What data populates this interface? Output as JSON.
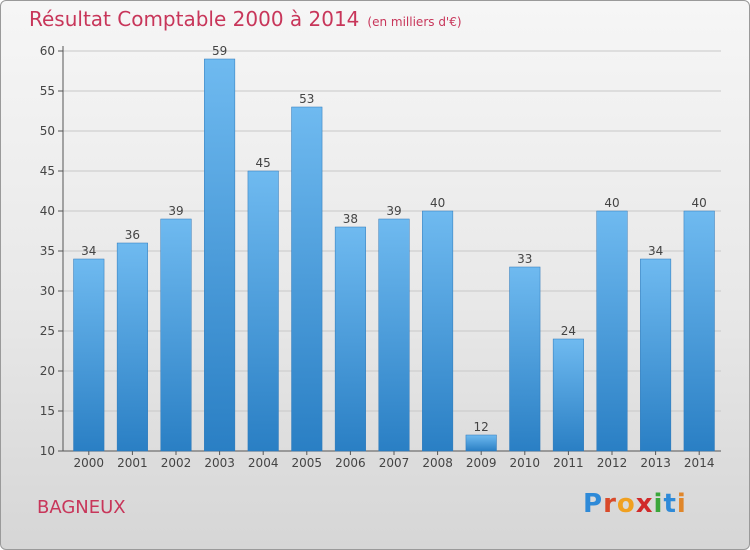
{
  "title": "Résultat Comptable 2000 à 2014",
  "subtitle": "(en milliers d'€)",
  "city": "BAGNEUX",
  "logo": {
    "text": "Proxiti",
    "letters": [
      "P",
      "r",
      "o",
      "x",
      "i",
      "t",
      "i"
    ],
    "colors": [
      "#2e8ad8",
      "#d94a2a",
      "#f0a020",
      "#d12a2a",
      "#3aa63a",
      "#2e8ad8",
      "#e0862a"
    ]
  },
  "colors": {
    "bar_light": "#6fbaf0",
    "bar_dark": "#2a7fc4",
    "title": "#c8365a"
  },
  "chart_data": {
    "type": "bar",
    "categories": [
      "2000",
      "2001",
      "2002",
      "2003",
      "2004",
      "2005",
      "2006",
      "2007",
      "2008",
      "2009",
      "2010",
      "2011",
      "2012",
      "2013",
      "2014"
    ],
    "values": [
      34,
      36,
      39,
      59,
      45,
      53,
      38,
      39,
      40,
      12,
      33,
      24,
      40,
      34,
      40
    ],
    "ylim": [
      10,
      60
    ],
    "yticks": [
      10,
      15,
      20,
      25,
      30,
      35,
      40,
      45,
      50,
      55,
      60
    ],
    "grid": true,
    "legend": "none"
  }
}
